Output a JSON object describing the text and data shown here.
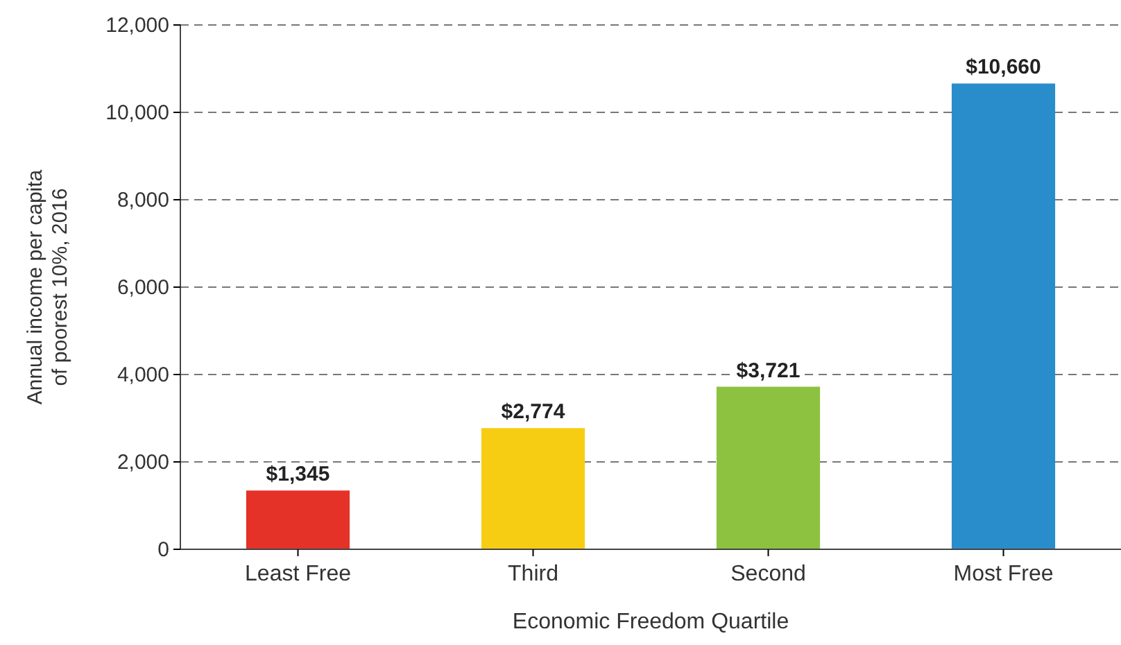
{
  "chart_data": {
    "type": "bar",
    "xlabel": "Economic Freedom Quartile",
    "ylabel": "Annual income per capita\nof poorest 10%, 2016",
    "categories": [
      "Least Free",
      "Third",
      "Second",
      "Most Free"
    ],
    "values": [
      1345,
      2774,
      3721,
      10660
    ],
    "colors": [
      "#e53228",
      "#f7cd14",
      "#8cc23f",
      "#2a8dcb"
    ],
    "value_labels": [
      "$1,345",
      "$2,774",
      "$3,721",
      "$10,660"
    ],
    "ylim": [
      0,
      12000
    ],
    "yticks": [
      {
        "value": 0,
        "label": "0"
      },
      {
        "value": 2000,
        "label": "2,000"
      },
      {
        "value": 4000,
        "label": "4,000"
      },
      {
        "value": 6000,
        "label": "6,000"
      },
      {
        "value": 8000,
        "label": "8,000"
      },
      {
        "value": 10000,
        "label": "10,000"
      },
      {
        "value": 12000,
        "label": "12,000"
      }
    ],
    "grid": "y"
  }
}
